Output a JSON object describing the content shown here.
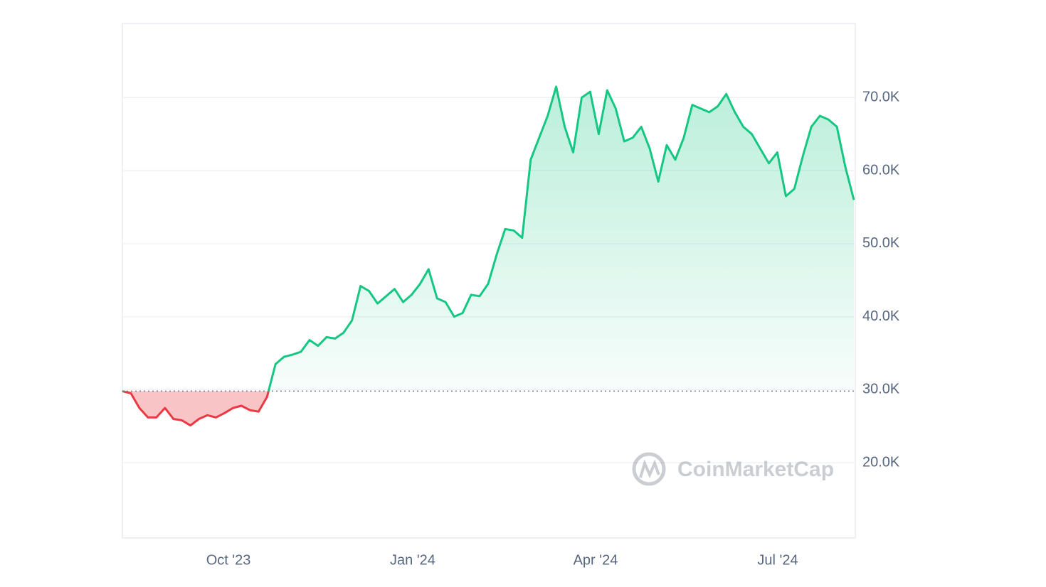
{
  "chart_data": {
    "type": "line",
    "watermark": "CoinMarketCap",
    "values": [
      29800,
      29500,
      27500,
      26200,
      26200,
      27500,
      26000,
      25800,
      25100,
      26000,
      26500,
      26200,
      26800,
      27500,
      27800,
      27200,
      27000,
      29000,
      33500,
      34500,
      34800,
      35200,
      36800,
      36000,
      37200,
      37000,
      37800,
      39500,
      44200,
      43500,
      41800,
      42800,
      43800,
      42000,
      43000,
      44500,
      46500,
      42500,
      42000,
      40000,
      40500,
      43000,
      42800,
      44500,
      48500,
      52000,
      51800,
      50800,
      61500,
      64500,
      67500,
      71500,
      66000,
      62500,
      70000,
      70800,
      65000,
      71000,
      68500,
      64000,
      64500,
      66000,
      63000,
      58500,
      63500,
      61500,
      64500,
      69000,
      68500,
      68000,
      68800,
      70500,
      68000,
      66000,
      65000,
      63000,
      61000,
      62500,
      56500,
      57500,
      62000,
      66000,
      67500,
      67000,
      66000,
      60500,
      56000
    ],
    "baseline": 29800,
    "color_up": "#16c784",
    "color_down": "#ea3943",
    "xlim": [
      0,
      86
    ],
    "xticks": [
      {
        "value": 12.47,
        "label": "Oct '23"
      },
      {
        "value": 34.13,
        "label": "Jan '24"
      },
      {
        "value": 55.63,
        "label": "Apr '24"
      },
      {
        "value": 77.05,
        "label": "Jul '24"
      }
    ],
    "ylim": [
      9700,
      80150
    ],
    "yticks": [
      {
        "value": 20000,
        "label": "20.0K"
      },
      {
        "value": 30000,
        "label": "30.0K"
      },
      {
        "value": 40000,
        "label": "40.0K"
      },
      {
        "value": 50000,
        "label": "50.0K"
      },
      {
        "value": 60000,
        "label": "60.0K"
      },
      {
        "value": 70000,
        "label": "70.0K"
      }
    ],
    "grid": true
  }
}
